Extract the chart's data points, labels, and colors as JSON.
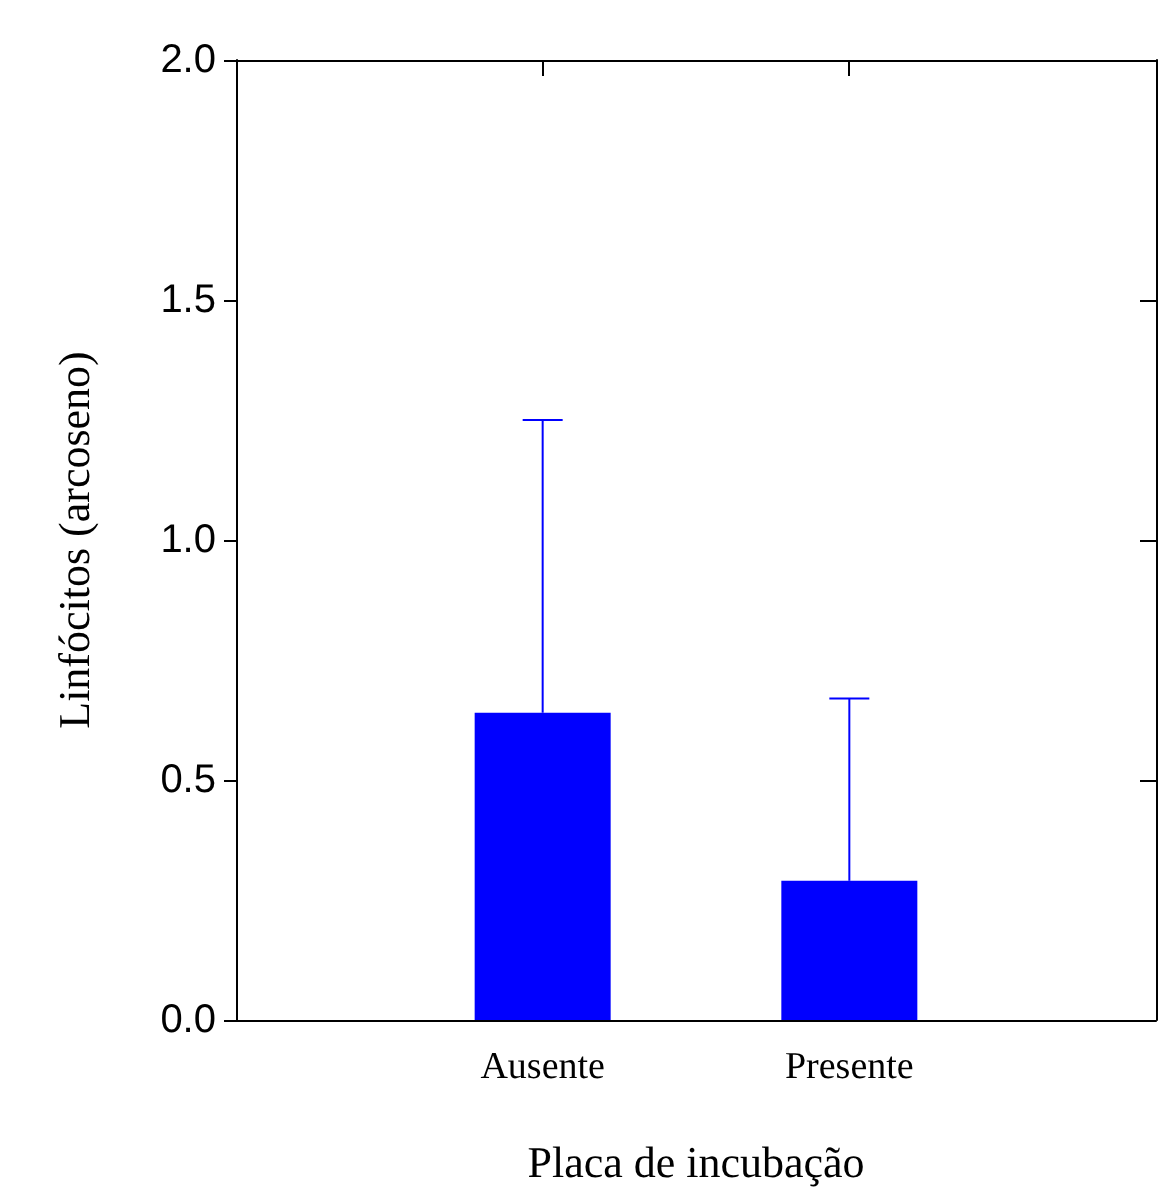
{
  "chart_data": {
    "type": "bar",
    "xlabel": "Placa de incubação",
    "ylabel": "Linfócitos (arcoseno)",
    "categories": [
      "Ausente",
      "Presente"
    ],
    "values": [
      0.64,
      0.29
    ],
    "errors": [
      [
        0.64,
        1.25
      ],
      [
        0.29,
        0.67
      ]
    ],
    "color": "#0000ff",
    "ylim": [
      0,
      2
    ],
    "yticks": [
      {
        "value": 0,
        "label": "0.0"
      },
      {
        "value": 0.5,
        "label": "0.5"
      },
      {
        "value": 1,
        "label": "1.0"
      },
      {
        "value": 1.5,
        "label": "1.5"
      },
      {
        "value": 2,
        "label": "2.0"
      }
    ],
    "grid": false
  }
}
